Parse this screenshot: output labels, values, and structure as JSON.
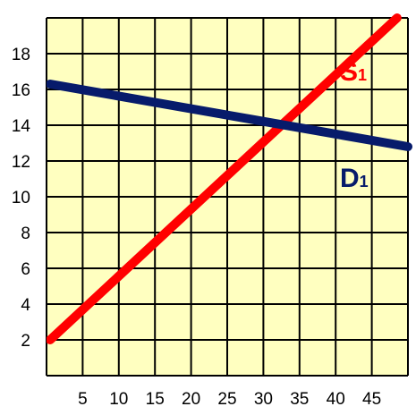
{
  "chart_data": {
    "type": "line",
    "title": "",
    "xlabel": "",
    "ylabel": "",
    "xlim": [
      0,
      50
    ],
    "ylim": [
      0,
      20
    ],
    "x_ticks": [
      5,
      10,
      15,
      20,
      25,
      30,
      35,
      40,
      45
    ],
    "y_ticks": [
      2,
      4,
      6,
      8,
      10,
      12,
      14,
      16,
      18
    ],
    "grid": true,
    "background_color": "#ffffc0",
    "series": [
      {
        "name": "S",
        "name_subscript": "1",
        "color": "#ff0000",
        "x": [
          0.5,
          48.5
        ],
        "y": [
          2,
          20
        ]
      },
      {
        "name": "D",
        "name_subscript": "1",
        "color": "#071b6b",
        "x": [
          0.5,
          50
        ],
        "y": [
          16.3,
          12.8
        ]
      }
    ]
  }
}
